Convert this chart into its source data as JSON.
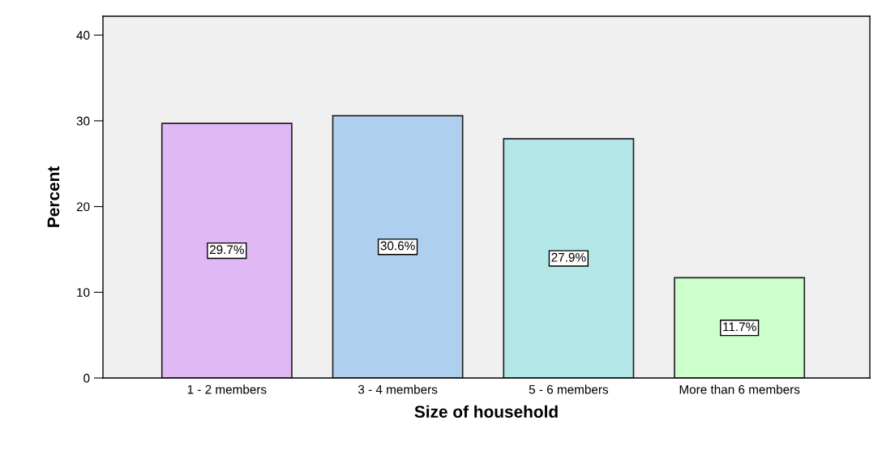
{
  "chart_data": {
    "type": "bar",
    "xlabel": "Size of household",
    "ylabel": "Percent",
    "categories": [
      "1 - 2 members",
      "3 - 4 members",
      "5 - 6 members",
      "More than 6 members"
    ],
    "values": [
      29.7,
      30.6,
      27.9,
      11.7
    ],
    "colors": [
      "#e0b8f4",
      "#aecfee",
      "#b3e6e6",
      "#ccffcc"
    ],
    "value_labels": [
      "29.7%",
      "30.6%",
      "27.9%",
      "11.7%"
    ],
    "ylim": [
      0,
      42.2
    ],
    "yticks": [
      0,
      10,
      20,
      30,
      40
    ],
    "grid": false,
    "legend": false
  }
}
